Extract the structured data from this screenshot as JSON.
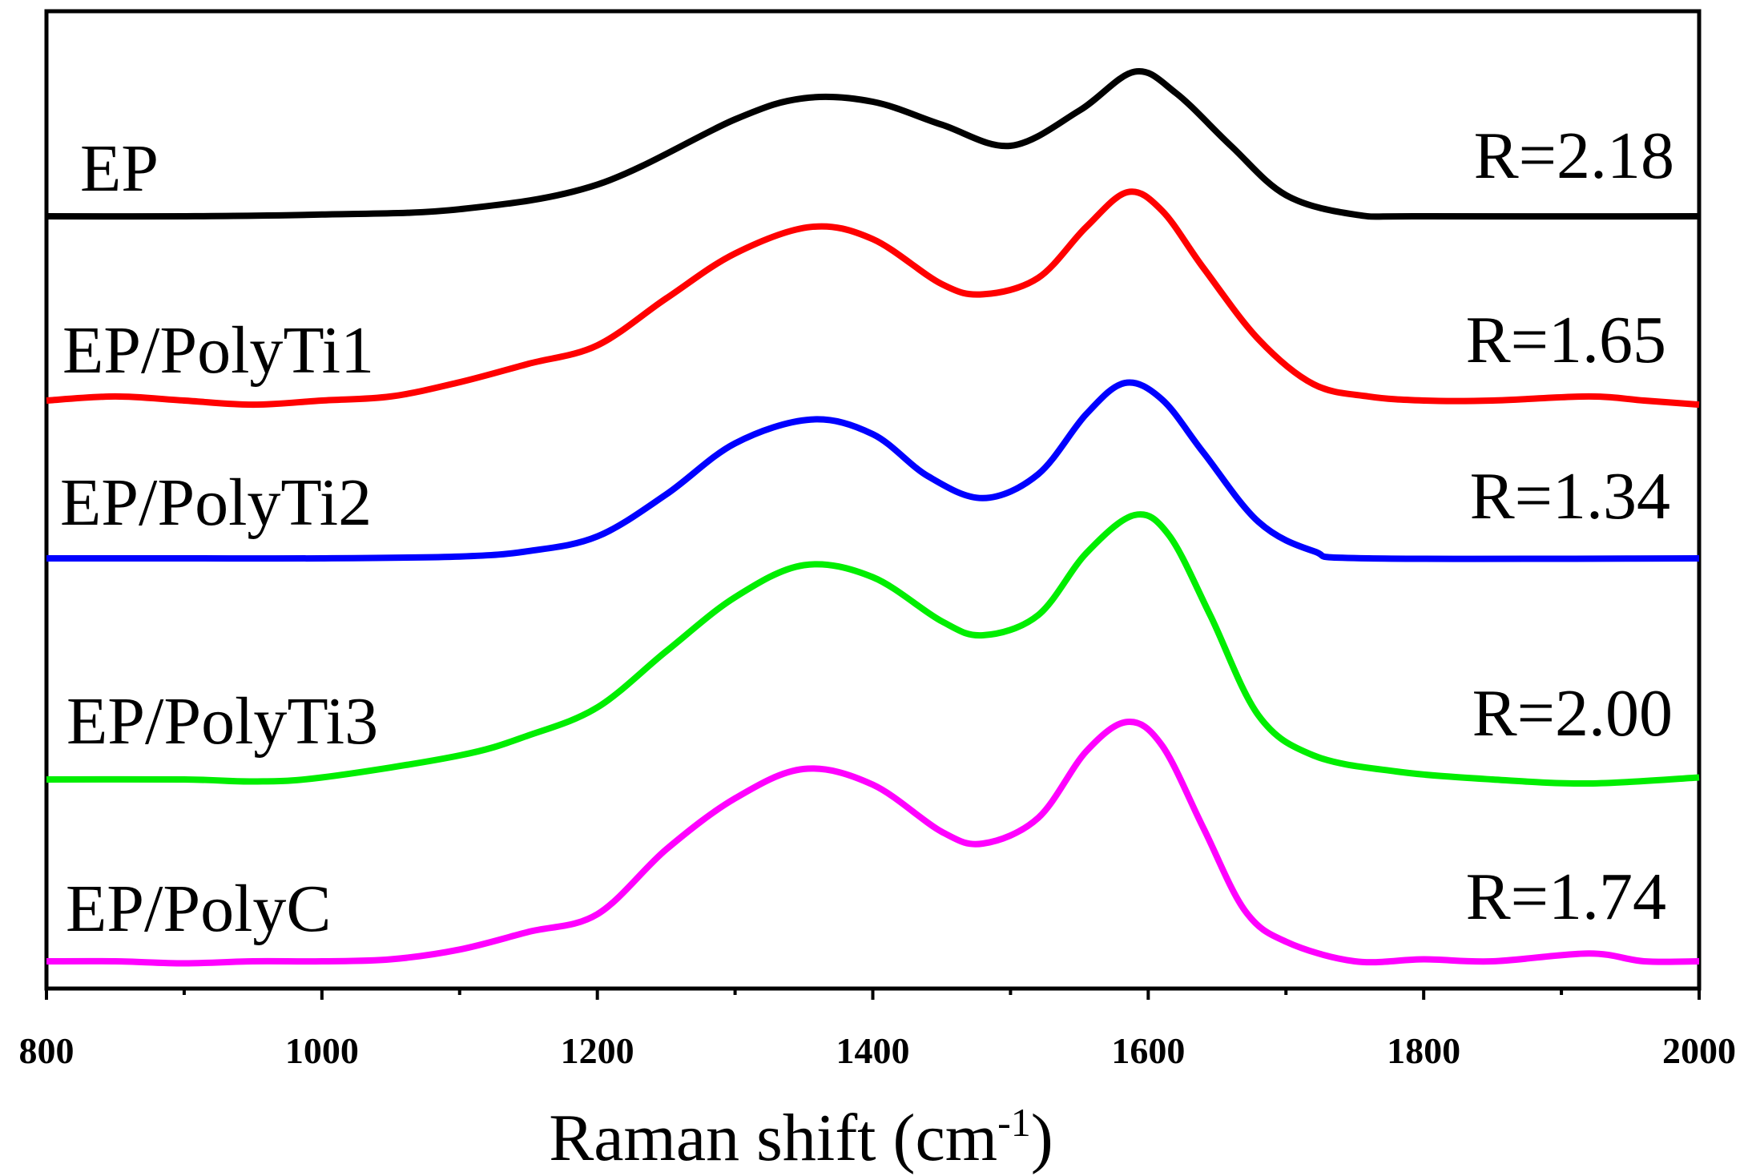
{
  "chart_data": {
    "type": "line",
    "title": "",
    "xlabel": "Raman shift (cm",
    "xlabel_superscript": "-1",
    "xlabel_suffix": ")",
    "ylabel": "",
    "xlim": [
      800,
      2000
    ],
    "x_ticks": [
      800,
      1000,
      1200,
      1400,
      1600,
      1800,
      2000
    ],
    "y_axis_visible": false,
    "grid": false,
    "stacked_offset_plot": true,
    "series": [
      {
        "name": "EP",
        "ratio_label": "R=2.18",
        "color": "#000000",
        "baseline": 0.0,
        "points": [
          [
            800,
            0
          ],
          [
            900,
            0
          ],
          [
            1000,
            0.01
          ],
          [
            1100,
            0.04
          ],
          [
            1200,
            0.18
          ],
          [
            1300,
            0.55
          ],
          [
            1350,
            0.67
          ],
          [
            1400,
            0.65
          ],
          [
            1450,
            0.52
          ],
          [
            1500,
            0.4
          ],
          [
            1550,
            0.6
          ],
          [
            1590,
            0.82
          ],
          [
            1620,
            0.7
          ],
          [
            1660,
            0.4
          ],
          [
            1700,
            0.12
          ],
          [
            1750,
            0.01
          ],
          [
            1800,
            0
          ],
          [
            2000,
            0
          ]
        ]
      },
      {
        "name": "EP/PolyTi1",
        "ratio_label": "R=1.65",
        "color": "#ff0000",
        "baseline": 0.0,
        "points": [
          [
            800,
            0
          ],
          [
            850,
            0.02
          ],
          [
            900,
            0
          ],
          [
            950,
            -0.02
          ],
          [
            1000,
            0
          ],
          [
            1050,
            0.02
          ],
          [
            1100,
            0.09
          ],
          [
            1150,
            0.18
          ],
          [
            1200,
            0.27
          ],
          [
            1250,
            0.5
          ],
          [
            1300,
            0.72
          ],
          [
            1355,
            0.85
          ],
          [
            1400,
            0.79
          ],
          [
            1450,
            0.57
          ],
          [
            1480,
            0.52
          ],
          [
            1520,
            0.6
          ],
          [
            1555,
            0.85
          ],
          [
            1585,
            1.02
          ],
          [
            1610,
            0.93
          ],
          [
            1640,
            0.65
          ],
          [
            1680,
            0.3
          ],
          [
            1720,
            0.08
          ],
          [
            1760,
            0.02
          ],
          [
            1800,
            0
          ],
          [
            1850,
            0
          ],
          [
            1920,
            0.02
          ],
          [
            1960,
            0
          ],
          [
            2000,
            -0.02
          ]
        ]
      },
      {
        "name": "EP/PolyTi2",
        "ratio_label": "R=1.34",
        "color": "#0000ff",
        "baseline": 0.0,
        "points": [
          [
            800,
            0
          ],
          [
            900,
            0
          ],
          [
            1000,
            0
          ],
          [
            1100,
            0.01
          ],
          [
            1150,
            0.04
          ],
          [
            1200,
            0.12
          ],
          [
            1250,
            0.35
          ],
          [
            1300,
            0.63
          ],
          [
            1355,
            0.76
          ],
          [
            1400,
            0.68
          ],
          [
            1440,
            0.45
          ],
          [
            1480,
            0.33
          ],
          [
            1520,
            0.46
          ],
          [
            1555,
            0.79
          ],
          [
            1583,
            0.96
          ],
          [
            1610,
            0.87
          ],
          [
            1640,
            0.58
          ],
          [
            1680,
            0.2
          ],
          [
            1720,
            0.04
          ],
          [
            1760,
            0
          ],
          [
            2000,
            0
          ]
        ]
      },
      {
        "name": "EP/PolyTi3",
        "ratio_label": "R=2.00",
        "color": "#00ee00",
        "baseline": 0.0,
        "points": [
          [
            800,
            0
          ],
          [
            900,
            0
          ],
          [
            950,
            -0.01
          ],
          [
            1000,
            0.01
          ],
          [
            1100,
            0.12
          ],
          [
            1150,
            0.22
          ],
          [
            1200,
            0.36
          ],
          [
            1250,
            0.64
          ],
          [
            1300,
            0.91
          ],
          [
            1350,
            1.07
          ],
          [
            1400,
            1.01
          ],
          [
            1450,
            0.79
          ],
          [
            1480,
            0.72
          ],
          [
            1520,
            0.82
          ],
          [
            1555,
            1.13
          ],
          [
            1590,
            1.32
          ],
          [
            1615,
            1.22
          ],
          [
            1645,
            0.82
          ],
          [
            1680,
            0.32
          ],
          [
            1720,
            0.12
          ],
          [
            1780,
            0.04
          ],
          [
            1850,
            0
          ],
          [
            1920,
            -0.02
          ],
          [
            2000,
            0.01
          ]
        ]
      },
      {
        "name": "EP/PolyC",
        "ratio_label": "R=1.74",
        "color": "#ff00ff",
        "baseline": 0.0,
        "points": [
          [
            800,
            0
          ],
          [
            850,
            0
          ],
          [
            900,
            -0.01
          ],
          [
            950,
            0
          ],
          [
            1000,
            0
          ],
          [
            1050,
            0.01
          ],
          [
            1100,
            0.06
          ],
          [
            1150,
            0.15
          ],
          [
            1200,
            0.24
          ],
          [
            1250,
            0.57
          ],
          [
            1300,
            0.83
          ],
          [
            1350,
            0.98
          ],
          [
            1400,
            0.9
          ],
          [
            1450,
            0.66
          ],
          [
            1480,
            0.6
          ],
          [
            1520,
            0.73
          ],
          [
            1555,
            1.07
          ],
          [
            1585,
            1.22
          ],
          [
            1610,
            1.1
          ],
          [
            1640,
            0.68
          ],
          [
            1670,
            0.26
          ],
          [
            1700,
            0.1
          ],
          [
            1750,
            0
          ],
          [
            1800,
            0.01
          ],
          [
            1850,
            0
          ],
          [
            1920,
            0.04
          ],
          [
            1960,
            0
          ],
          [
            2000,
            0
          ]
        ]
      }
    ]
  }
}
